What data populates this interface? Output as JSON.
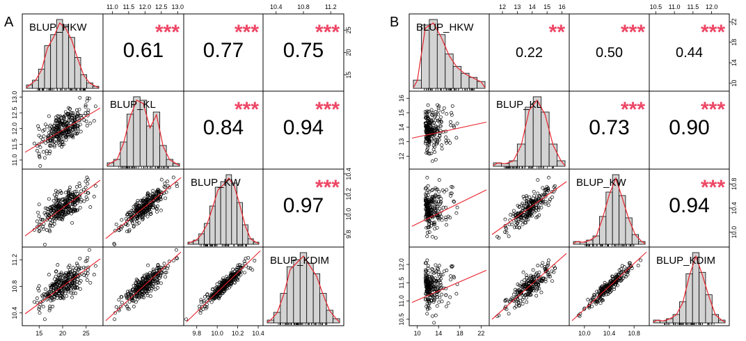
{
  "figure_type": "correlation scatterplot matrix",
  "colors": {
    "histogram_fill": "#d3d3d3",
    "fit_line": "#e8202a",
    "stars": "#ee4766",
    "frame": "#000000"
  },
  "chart_data": [
    {
      "type": "scatterplot-matrix",
      "panel_label": "A",
      "variables": [
        {
          "name": "BLUP_HKW",
          "range": [
            12,
            28
          ],
          "ticks": [
            "15",
            "20",
            "25"
          ]
        },
        {
          "name": "BLUP_KL",
          "range": [
            10.8,
            13.1
          ],
          "ticks": [
            "11.0",
            "11.5",
            "12.0",
            "12.5",
            "13.0"
          ]
        },
        {
          "name": "BLUP_KW",
          "range": [
            9.7,
            10.42
          ],
          "ticks": [
            "9.8",
            "10.0",
            "10.2",
            "10.4"
          ]
        },
        {
          "name": "BLUP_KDIM",
          "range": [
            10.25,
            11.35
          ],
          "ticks": [
            "10.4",
            "10.8",
            "11.2"
          ]
        }
      ],
      "correlations": [
        {
          "pair": [
            "BLUP_HKW",
            "BLUP_KL"
          ],
          "r": "0.61",
          "stars": "***"
        },
        {
          "pair": [
            "BLUP_HKW",
            "BLUP_KW"
          ],
          "r": "0.77",
          "stars": "***"
        },
        {
          "pair": [
            "BLUP_HKW",
            "BLUP_KDIM"
          ],
          "r": "0.75",
          "stars": "***"
        },
        {
          "pair": [
            "BLUP_KL",
            "BLUP_KW"
          ],
          "r": "0.84",
          "stars": "***"
        },
        {
          "pair": [
            "BLUP_KL",
            "BLUP_KDIM"
          ],
          "r": "0.94",
          "stars": "***"
        },
        {
          "pair": [
            "BLUP_KW",
            "BLUP_KDIM"
          ],
          "r": "0.97",
          "stars": "***"
        }
      ],
      "histograms": [
        {
          "var": "BLUP_HKW",
          "values": [
            0.05,
            0.12,
            0.28,
            0.62,
            0.78,
            1.0,
            0.92,
            0.74,
            0.45,
            0.2,
            0.08,
            0.03
          ]
        },
        {
          "var": "BLUP_KL",
          "values": [
            0.05,
            0.1,
            0.35,
            0.75,
            1.0,
            0.95,
            0.58,
            0.78,
            0.3,
            0.1,
            0.04
          ]
        },
        {
          "var": "BLUP_KW",
          "values": [
            0.03,
            0.06,
            0.15,
            0.3,
            0.55,
            0.82,
            0.9,
            1.0,
            0.88,
            0.6,
            0.28,
            0.08,
            0.03
          ]
        },
        {
          "var": "BLUP_KDIM",
          "values": [
            0.04,
            0.15,
            0.42,
            0.8,
            0.9,
            1.0,
            0.85,
            0.7,
            0.42,
            0.18,
            0.06
          ]
        }
      ]
    },
    {
      "type": "scatterplot-matrix",
      "panel_label": "B",
      "variables": [
        {
          "name": "BLUP_HKW",
          "range": [
            9,
            23
          ],
          "ticks": [
            "10",
            "14",
            "18",
            "22"
          ]
        },
        {
          "name": "BLUP_KL",
          "range": [
            11.3,
            16.3
          ],
          "ticks": [
            "12",
            "13",
            "14",
            "15",
            "16"
          ]
        },
        {
          "name": "BLUP_KW",
          "range": [
            9.8,
            11.0
          ],
          "ticks": [
            "10.0",
            "10.4",
            "10.8"
          ]
        },
        {
          "name": "BLUP_KDIM",
          "range": [
            10.4,
            12.4
          ],
          "ticks": [
            "10.5",
            "11.0",
            "11.5",
            "12.0"
          ]
        }
      ],
      "correlations": [
        {
          "pair": [
            "BLUP_HKW",
            "BLUP_KL"
          ],
          "r": "0.22",
          "stars": "**"
        },
        {
          "pair": [
            "BLUP_HKW",
            "BLUP_KW"
          ],
          "r": "0.50",
          "stars": "***"
        },
        {
          "pair": [
            "BLUP_HKW",
            "BLUP_KDIM"
          ],
          "r": "0.44",
          "stars": "***"
        },
        {
          "pair": [
            "BLUP_KL",
            "BLUP_KW"
          ],
          "r": "0.73",
          "stars": "***"
        },
        {
          "pair": [
            "BLUP_KL",
            "BLUP_KDIM"
          ],
          "r": "0.90",
          "stars": "***"
        },
        {
          "pair": [
            "BLUP_KW",
            "BLUP_KDIM"
          ],
          "r": "0.94",
          "stars": "***"
        }
      ],
      "histograms": [
        {
          "var": "BLUP_HKW",
          "values": [
            0.12,
            0.92,
            1.0,
            0.78,
            0.5,
            0.32,
            0.22,
            0.16,
            0.1
          ]
        },
        {
          "var": "BLUP_KL",
          "values": [
            0.05,
            0.04,
            0.08,
            0.32,
            0.85,
            1.0,
            0.78,
            0.32,
            0.08
          ]
        },
        {
          "var": "BLUP_KW",
          "values": [
            0.04,
            0.03,
            0.06,
            0.12,
            0.4,
            0.75,
            1.0,
            0.7,
            0.38,
            0.14,
            0.04
          ]
        },
        {
          "var": "BLUP_KDIM",
          "values": [
            0.04,
            0.03,
            0.06,
            0.12,
            0.3,
            0.7,
            1.0,
            0.72,
            0.4,
            0.12,
            0.04
          ]
        }
      ]
    }
  ]
}
